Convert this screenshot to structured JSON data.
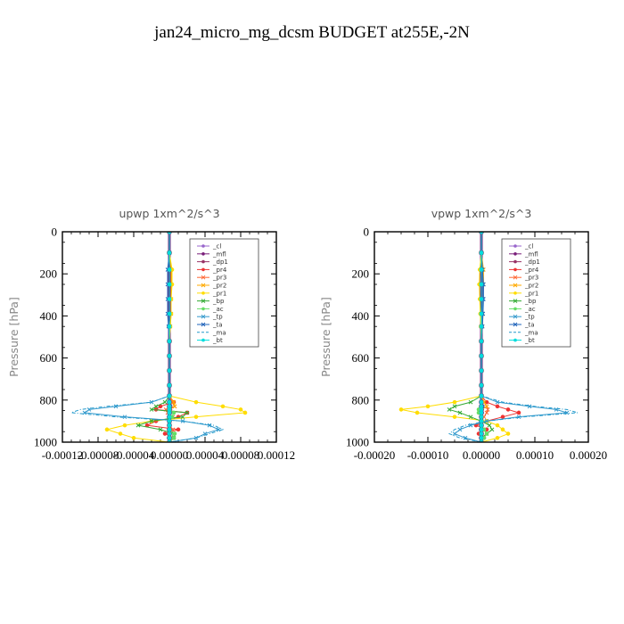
{
  "title": "jan24_micro_mg_dcsm  BUDGET at255E,-2N",
  "chart_data": [
    {
      "type": "line",
      "title": "upwp   1xm^2/s^3",
      "ylabel": "Pressure [hPa]",
      "xlim": [
        -0.00012,
        0.00012
      ],
      "ylim": [
        1000,
        0
      ],
      "xticks": [
        -0.00012,
        -8e-05,
        -4e-05,
        0.0,
        4e-05,
        8e-05,
        0.00012
      ],
      "xtick_labels": [
        "-0.00012",
        "-0.00008",
        "-0.00004",
        "0.00000",
        "0.00004",
        "0.00008",
        "0.00012"
      ],
      "yticks": [
        0,
        200,
        400,
        600,
        800,
        1000
      ],
      "ytick_labels": [
        "0",
        "200",
        "400",
        "600",
        "800",
        "1000"
      ],
      "legend_position": "top-right",
      "y": [
        0,
        100,
        180,
        250,
        320,
        390,
        450,
        520,
        590,
        660,
        730,
        780,
        810,
        830,
        845,
        860,
        880,
        900,
        920,
        940,
        960,
        980,
        1000
      ],
      "series": [
        {
          "name": "_cl",
          "color": "#9966cc",
          "marker": "o",
          "values": [
            0,
            0,
            0,
            0,
            0,
            0,
            0,
            0,
            0,
            0,
            0,
            0,
            2e-06,
            1e-06,
            1e-06,
            1e-06,
            0,
            0,
            0,
            1e-06,
            0,
            0,
            0
          ]
        },
        {
          "name": "_mfl",
          "color": "#7a1f7a",
          "marker": "o",
          "values": [
            0,
            0,
            0,
            0,
            0,
            0,
            0,
            0,
            0,
            0,
            0,
            0,
            0,
            0,
            0,
            0,
            0,
            0,
            0,
            0,
            0,
            0,
            0
          ]
        },
        {
          "name": "_dp1",
          "color": "#993366",
          "marker": "o",
          "values": [
            0,
            0,
            0,
            0,
            0,
            0,
            0,
            0,
            0,
            0,
            0,
            0,
            0,
            1e-06,
            0,
            0,
            0,
            0,
            0,
            0,
            0,
            0,
            0
          ]
        },
        {
          "name": "_pr4",
          "color": "#ee3333",
          "marker": "o",
          "values": [
            0,
            0,
            0,
            0,
            0,
            0,
            0,
            0,
            0,
            0,
            0,
            0,
            5e-06,
            -1e-05,
            -1.5e-05,
            2e-05,
            1e-05,
            -1.5e-05,
            -2.5e-05,
            1e-05,
            -5e-06,
            5e-06,
            0
          ]
        },
        {
          "name": "_pr3",
          "color": "#ff6633",
          "marker": "x",
          "values": [
            0,
            0,
            0,
            0,
            0,
            0,
            0,
            0,
            0,
            0,
            0,
            0,
            4e-06,
            6e-06,
            -4e-06,
            -2e-06,
            4e-06,
            0,
            0,
            4e-06,
            0,
            0,
            0
          ]
        },
        {
          "name": "_pr2",
          "color": "#ffaa00",
          "marker": "x",
          "values": [
            0,
            0,
            2e-06,
            2e-06,
            2e-06,
            2e-06,
            1e-06,
            0,
            0,
            0,
            0,
            0,
            5e-06,
            6e-06,
            0,
            0,
            0,
            0,
            0,
            0,
            0,
            0,
            0
          ]
        },
        {
          "name": "_pr1",
          "color": "#ffdd00",
          "marker": "o",
          "values": [
            0,
            0,
            3e-06,
            3e-06,
            2e-06,
            2e-06,
            1e-06,
            0,
            0,
            0,
            0,
            0,
            3e-05,
            6e-05,
            8e-05,
            8.5e-05,
            3e-05,
            -2e-05,
            -5e-05,
            -7e-05,
            -5.5e-05,
            -4e-05,
            0
          ]
        },
        {
          "name": "_bp",
          "color": "#33aa33",
          "marker": "x",
          "values": [
            0,
            0,
            0,
            0,
            0,
            0,
            0,
            0,
            0,
            0,
            0,
            0,
            -5e-06,
            -1.5e-05,
            -2e-05,
            2e-05,
            1.5e-05,
            -2e-05,
            -3.5e-05,
            -1e-05,
            5e-06,
            5e-06,
            0
          ]
        },
        {
          "name": "_ac",
          "color": "#66dd66",
          "marker": "o",
          "values": [
            0,
            0,
            0,
            0,
            0,
            0,
            0,
            0,
            0,
            0,
            0,
            0,
            0,
            0,
            0,
            5e-06,
            3e-06,
            0,
            0,
            0,
            6e-06,
            5e-06,
            0
          ]
        },
        {
          "name": "_tp",
          "color": "#3399cc",
          "marker": "x",
          "values": [
            0,
            0,
            0,
            0,
            0,
            0,
            0,
            0,
            0,
            0,
            0,
            0,
            -2e-05,
            -6e-05,
            -9e-05,
            -9.5e-05,
            -5e-05,
            1.5e-05,
            4.5e-05,
            5.5e-05,
            4e-05,
            3e-05,
            0
          ]
        },
        {
          "name": "_ta",
          "color": "#2266bb",
          "marker": "x",
          "values": [
            0,
            0,
            -2e-06,
            -2e-06,
            -2e-06,
            -2e-06,
            -1e-06,
            0,
            0,
            0,
            0,
            0,
            0,
            1e-06,
            0,
            0,
            0,
            0,
            0,
            0,
            0,
            0,
            0
          ]
        },
        {
          "name": "_ma",
          "color": "#2299cc",
          "marker": "dash",
          "values": [
            0,
            0,
            0,
            0,
            0,
            0,
            0,
            0,
            0,
            0,
            0,
            0,
            -2e-05,
            -7e-05,
            -0.0001,
            -0.00011,
            -6e-05,
            1.5e-05,
            5e-05,
            6e-05,
            4.5e-05,
            3e-05,
            0
          ]
        },
        {
          "name": "_bt",
          "color": "#00dddd",
          "marker": "o",
          "values": [
            0,
            0,
            0,
            0,
            0,
            0,
            0,
            0,
            0,
            0,
            0,
            0,
            0,
            0,
            0,
            0,
            0,
            0,
            0,
            0,
            0,
            0,
            0
          ]
        }
      ]
    },
    {
      "type": "line",
      "title": "vpwp   1xm^2/s^3",
      "ylabel": "Pressure [hPa]",
      "xlim": [
        -0.0002,
        0.0002
      ],
      "ylim": [
        1000,
        0
      ],
      "xticks": [
        -0.0002,
        -0.0001,
        0.0,
        0.0001,
        0.0002
      ],
      "xtick_labels": [
        "-0.00020",
        "-0.00010",
        "0.00000",
        "0.00010",
        "0.00020"
      ],
      "yticks": [
        0,
        200,
        400,
        600,
        800,
        1000
      ],
      "ytick_labels": [
        "0",
        "200",
        "400",
        "600",
        "800",
        "1000"
      ],
      "legend_position": "top-right",
      "y": [
        0,
        100,
        180,
        250,
        320,
        390,
        450,
        520,
        590,
        660,
        730,
        780,
        810,
        830,
        845,
        860,
        880,
        900,
        920,
        940,
        960,
        980,
        1000
      ],
      "series": [
        {
          "name": "_cl",
          "color": "#9966cc",
          "marker": "o",
          "values": [
            0,
            0,
            0,
            0,
            0,
            0,
            0,
            0,
            0,
            0,
            0,
            0,
            2e-06,
            2e-06,
            1e-06,
            1e-06,
            0,
            0,
            0,
            1e-06,
            0,
            0,
            0
          ]
        },
        {
          "name": "_mfl",
          "color": "#7a1f7a",
          "marker": "o",
          "values": [
            0,
            0,
            0,
            0,
            0,
            0,
            0,
            0,
            0,
            0,
            0,
            0,
            0,
            0,
            0,
            0,
            0,
            0,
            0,
            0,
            0,
            0,
            0
          ]
        },
        {
          "name": "_dp1",
          "color": "#993366",
          "marker": "o",
          "values": [
            0,
            0,
            0,
            0,
            0,
            0,
            0,
            0,
            0,
            0,
            0,
            0,
            0,
            2e-06,
            0,
            0,
            0,
            0,
            0,
            0,
            0,
            0,
            0
          ]
        },
        {
          "name": "_pr4",
          "color": "#ee3333",
          "marker": "o",
          "values": [
            0,
            0,
            0,
            0,
            0,
            0,
            0,
            0,
            0,
            0,
            0,
            0,
            1e-05,
            3e-05,
            5e-05,
            7e-05,
            4e-05,
            1e-05,
            -1e-05,
            1e-05,
            -5e-06,
            5e-06,
            0
          ]
        },
        {
          "name": "_pr3",
          "color": "#ff6633",
          "marker": "x",
          "values": [
            0,
            0,
            0,
            0,
            0,
            0,
            0,
            0,
            0,
            0,
            0,
            0,
            5e-06,
            1e-05,
            1.2e-05,
            1e-05,
            5e-06,
            0,
            0,
            5e-06,
            0,
            0,
            0
          ]
        },
        {
          "name": "_pr2",
          "color": "#ffaa00",
          "marker": "x",
          "values": [
            0,
            0,
            4e-06,
            4e-06,
            3e-06,
            3e-06,
            2e-06,
            0,
            0,
            0,
            0,
            0,
            5e-06,
            1e-05,
            0,
            0,
            0,
            0,
            0,
            0,
            0,
            0,
            0
          ]
        },
        {
          "name": "_pr1",
          "color": "#ffdd00",
          "marker": "o",
          "values": [
            0,
            0,
            -3e-06,
            -4e-06,
            -3e-06,
            -2e-06,
            -1e-06,
            0,
            0,
            0,
            0,
            0,
            -5e-05,
            -0.0001,
            -0.00015,
            -0.00012,
            -5e-05,
            1e-05,
            3e-05,
            4e-05,
            5e-05,
            3e-05,
            0
          ]
        },
        {
          "name": "_bp",
          "color": "#33aa33",
          "marker": "x",
          "values": [
            0,
            0,
            0,
            0,
            0,
            0,
            0,
            0,
            0,
            0,
            0,
            0,
            -2e-05,
            -5e-05,
            -6e-05,
            -4e-05,
            -2e-05,
            0,
            1.5e-05,
            2e-05,
            1e-05,
            0,
            0
          ]
        },
        {
          "name": "_ac",
          "color": "#66dd66",
          "marker": "o",
          "values": [
            0,
            0,
            0,
            0,
            0,
            0,
            0,
            0,
            0,
            0,
            0,
            0,
            0,
            0,
            -5e-06,
            -5e-06,
            0,
            0,
            0,
            5e-06,
            1e-05,
            5e-06,
            0
          ]
        },
        {
          "name": "_tp",
          "color": "#3399cc",
          "marker": "x",
          "values": [
            0,
            0,
            2e-06,
            3e-06,
            3e-06,
            2e-06,
            1e-06,
            0,
            0,
            0,
            0,
            0,
            3e-05,
            9e-05,
            0.00014,
            0.00016,
            7e-05,
            1e-05,
            -2e-05,
            -4e-05,
            -5e-05,
            -3e-05,
            0
          ]
        },
        {
          "name": "_ta",
          "color": "#2266bb",
          "marker": "x",
          "values": [
            0,
            0,
            2e-06,
            4e-06,
            4e-06,
            3e-06,
            2e-06,
            0,
            0,
            0,
            0,
            0,
            0,
            2e-06,
            0,
            0,
            0,
            0,
            0,
            0,
            0,
            0,
            0
          ]
        },
        {
          "name": "_ma",
          "color": "#2299cc",
          "marker": "dash",
          "values": [
            0,
            0,
            0,
            0,
            0,
            0,
            0,
            0,
            0,
            0,
            0,
            0,
            4e-05,
            0.0001,
            0.00016,
            0.00018,
            8e-05,
            1e-05,
            -3e-05,
            -5e-05,
            -6e-05,
            -4e-05,
            0
          ]
        },
        {
          "name": "_bt",
          "color": "#00dddd",
          "marker": "o",
          "values": [
            0,
            0,
            0,
            0,
            0,
            0,
            0,
            0,
            0,
            0,
            0,
            0,
            0,
            0,
            0,
            0,
            0,
            0,
            0,
            0,
            0,
            0,
            0
          ]
        }
      ]
    }
  ]
}
